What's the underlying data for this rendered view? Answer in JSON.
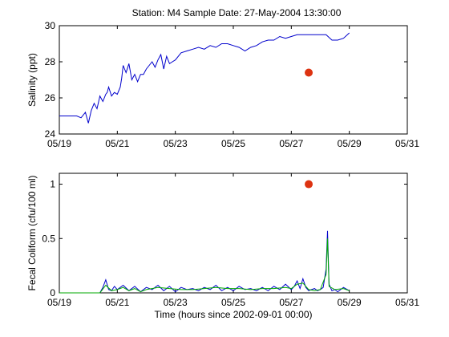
{
  "title": "Station: M4  Sample Date: 27-May-2004 13:30:00",
  "colors": {
    "series_blue": "#0000cc",
    "series_green": "#00aa00",
    "sample_marker": "#dd3311",
    "axes": "#000000"
  },
  "chart_data": [
    {
      "type": "line",
      "panel": "top",
      "title": "Station: M4  Sample Date: 27-May-2004 13:30:00",
      "xlabel": "",
      "ylabel": "Salinity (ppt)",
      "x_ticks": [
        "05/19",
        "05/21",
        "05/23",
        "05/25",
        "05/27",
        "05/29",
        "05/31"
      ],
      "xlim_days": [
        19,
        31
      ],
      "ylim": [
        24,
        30
      ],
      "y_ticks": [
        "24",
        "26",
        "28",
        "30"
      ],
      "grid": false,
      "series": [
        {
          "x": [
            19.0,
            19.3,
            19.6,
            19.75,
            19.9,
            20.0,
            20.1,
            20.2,
            20.3,
            20.4,
            20.5,
            20.6,
            20.65,
            20.7,
            20.8,
            20.9,
            21.0,
            21.1,
            21.15,
            21.2,
            21.3,
            21.4,
            21.5,
            21.6,
            21.7,
            21.8,
            21.9,
            22.0,
            22.1,
            22.2,
            22.3,
            22.4,
            22.5,
            22.6,
            22.7,
            22.8,
            22.9,
            23.0,
            23.2,
            23.4,
            23.6,
            23.8,
            24.0,
            24.2,
            24.4,
            24.6,
            24.8,
            25.0,
            25.2,
            25.4,
            25.6,
            25.8,
            26.0,
            26.2,
            26.4,
            26.6,
            26.8,
            27.0,
            27.2,
            27.4,
            27.6,
            27.8,
            28.0,
            28.2,
            28.4,
            28.6,
            28.8,
            29.0
          ],
          "values": [
            25.0,
            25.0,
            25.0,
            24.9,
            25.2,
            24.6,
            25.3,
            25.7,
            25.4,
            26.1,
            25.8,
            26.2,
            26.3,
            26.6,
            26.1,
            26.3,
            26.2,
            26.6,
            27.1,
            27.8,
            27.4,
            27.9,
            27.0,
            27.3,
            26.9,
            27.3,
            27.3,
            27.6,
            27.8,
            28.0,
            27.7,
            28.1,
            28.4,
            27.6,
            28.3,
            27.9,
            28.0,
            28.1,
            28.5,
            28.6,
            28.7,
            28.8,
            28.7,
            28.9,
            28.8,
            29.0,
            29.0,
            28.9,
            28.8,
            28.6,
            28.8,
            28.9,
            29.1,
            29.2,
            29.2,
            29.4,
            29.3,
            29.4,
            29.5,
            29.5,
            29.5,
            29.5,
            29.5,
            29.5,
            29.2,
            29.2,
            29.3,
            29.6
          ]
        }
      ],
      "markers": [
        {
          "x": 27.6,
          "y": 27.4
        }
      ]
    },
    {
      "type": "line",
      "panel": "bottom",
      "xlabel": "Time (hours since 2002-09-01 00:00)",
      "ylabel": "Fecal Coliform (cfu/100 ml)",
      "x_ticks": [
        "05/19",
        "05/21",
        "05/23",
        "05/25",
        "05/27",
        "05/29",
        "05/31"
      ],
      "xlim_days": [
        19,
        31
      ],
      "ylim": [
        0,
        1.1
      ],
      "y_ticks": [
        "0",
        "0.5",
        "1"
      ],
      "grid": false,
      "series": [
        {
          "x": [
            19.0,
            20.4,
            20.5,
            20.6,
            20.7,
            20.8,
            20.9,
            21.0,
            21.2,
            21.4,
            21.6,
            21.8,
            22.0,
            22.2,
            22.4,
            22.6,
            22.8,
            23.0,
            23.2,
            23.4,
            23.6,
            23.8,
            24.0,
            24.2,
            24.4,
            24.6,
            24.8,
            25.0,
            25.2,
            25.4,
            25.6,
            25.8,
            26.0,
            26.2,
            26.4,
            26.6,
            26.8,
            27.0,
            27.1,
            27.2,
            27.3,
            27.4,
            27.5,
            27.6,
            27.7,
            27.8,
            27.9,
            28.0,
            28.1,
            28.2,
            28.25,
            28.3,
            28.4,
            28.5,
            28.6,
            28.8,
            29.0
          ],
          "values": [
            0.0,
            0.0,
            0.05,
            0.12,
            0.03,
            0.02,
            0.06,
            0.03,
            0.07,
            0.02,
            0.06,
            0.01,
            0.05,
            0.03,
            0.07,
            0.02,
            0.06,
            0.01,
            0.05,
            0.03,
            0.04,
            0.02,
            0.05,
            0.03,
            0.07,
            0.02,
            0.05,
            0.02,
            0.06,
            0.03,
            0.04,
            0.02,
            0.05,
            0.02,
            0.06,
            0.03,
            0.08,
            0.03,
            0.06,
            0.11,
            0.04,
            0.13,
            0.05,
            0.02,
            0.03,
            0.04,
            0.02,
            0.03,
            0.05,
            0.22,
            0.57,
            0.08,
            0.02,
            0.03,
            0.01,
            0.05,
            0.02
          ]
        },
        {
          "x": [
            19.0,
            20.4,
            20.6,
            20.8,
            21.0,
            21.2,
            21.4,
            21.6,
            21.8,
            22.0,
            22.4,
            22.8,
            23.2,
            23.6,
            24.0,
            24.4,
            24.8,
            25.2,
            25.6,
            26.0,
            26.4,
            26.8,
            27.0,
            27.2,
            27.4,
            27.6,
            27.8,
            28.0,
            28.2,
            28.25,
            28.3,
            28.5,
            28.8,
            29.0
          ],
          "values": [
            0.0,
            0.0,
            0.07,
            0.02,
            0.03,
            0.05,
            0.02,
            0.04,
            0.01,
            0.03,
            0.05,
            0.04,
            0.03,
            0.03,
            0.04,
            0.05,
            0.04,
            0.04,
            0.03,
            0.04,
            0.04,
            0.05,
            0.04,
            0.08,
            0.09,
            0.03,
            0.02,
            0.03,
            0.17,
            0.5,
            0.06,
            0.03,
            0.04,
            0.02
          ]
        }
      ],
      "markers": [
        {
          "x": 27.6,
          "y": 1.0
        }
      ]
    }
  ]
}
